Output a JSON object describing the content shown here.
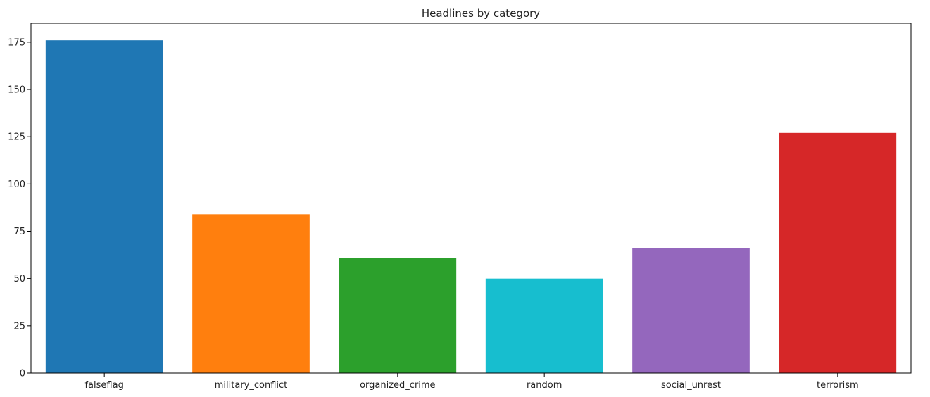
{
  "chart_data": {
    "type": "bar",
    "title": "Headlines by category",
    "xlabel": "",
    "ylabel": "",
    "categories": [
      "falseflag",
      "military_conflict",
      "organized_crime",
      "random",
      "social_unrest",
      "terrorism"
    ],
    "values": [
      176,
      84,
      61,
      50,
      66,
      127
    ],
    "colors": [
      "#1f77b4",
      "#ff7f0e",
      "#2ca02c",
      "#17becf",
      "#9467bd",
      "#d62728"
    ],
    "ylim": [
      0,
      185
    ],
    "yticks": [
      0,
      25,
      50,
      75,
      100,
      125,
      150,
      175
    ],
    "grid": false,
    "legend": "none"
  }
}
